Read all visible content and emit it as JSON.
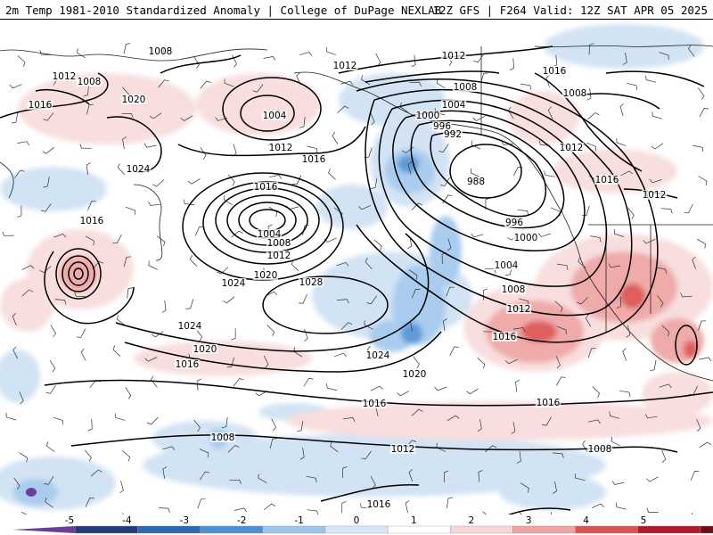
{
  "header": {
    "left_title": "2m Temp 1981-2010 Standardized Anomaly | College of DuPage NEXLAB",
    "right_title": "12Z GFS | F264 Valid: 12Z SAT APR 05 2025"
  },
  "colorbar": {
    "ticks": [
      "-5",
      "-4",
      "-3",
      "-2",
      "-1",
      "0",
      "1",
      "2",
      "3",
      "4",
      "5"
    ],
    "colors": [
      "#6a3d9a",
      "#253a7a",
      "#2c66b5",
      "#4b8fd6",
      "#9cc6ee",
      "#d6e6f6",
      "#ffffff",
      "#f8d6d6",
      "#eea3a3",
      "#d9534f",
      "#b2182b",
      "#6d0d1a",
      "#f2b705"
    ]
  },
  "isobars": {
    "labels": [
      "1016",
      "1012",
      "1008",
      "1016",
      "1020",
      "1024",
      "1016",
      "1004",
      "1012",
      "1012",
      "1016",
      "1016",
      "1004",
      "1008",
      "1012",
      "1020",
      "1024",
      "1028",
      "1024",
      "1020",
      "1016",
      "1024",
      "1020",
      "1012",
      "1008",
      "1004",
      "1000",
      "996",
      "992",
      "988",
      "996",
      "1000",
      "1004",
      "1008",
      "1012",
      "1016",
      "1016",
      "1008",
      "1016",
      "1012",
      "1008",
      "1016",
      "1016",
      "1016",
      "1012",
      "1012",
      "1012",
      "1008",
      "1008"
    ]
  }
}
